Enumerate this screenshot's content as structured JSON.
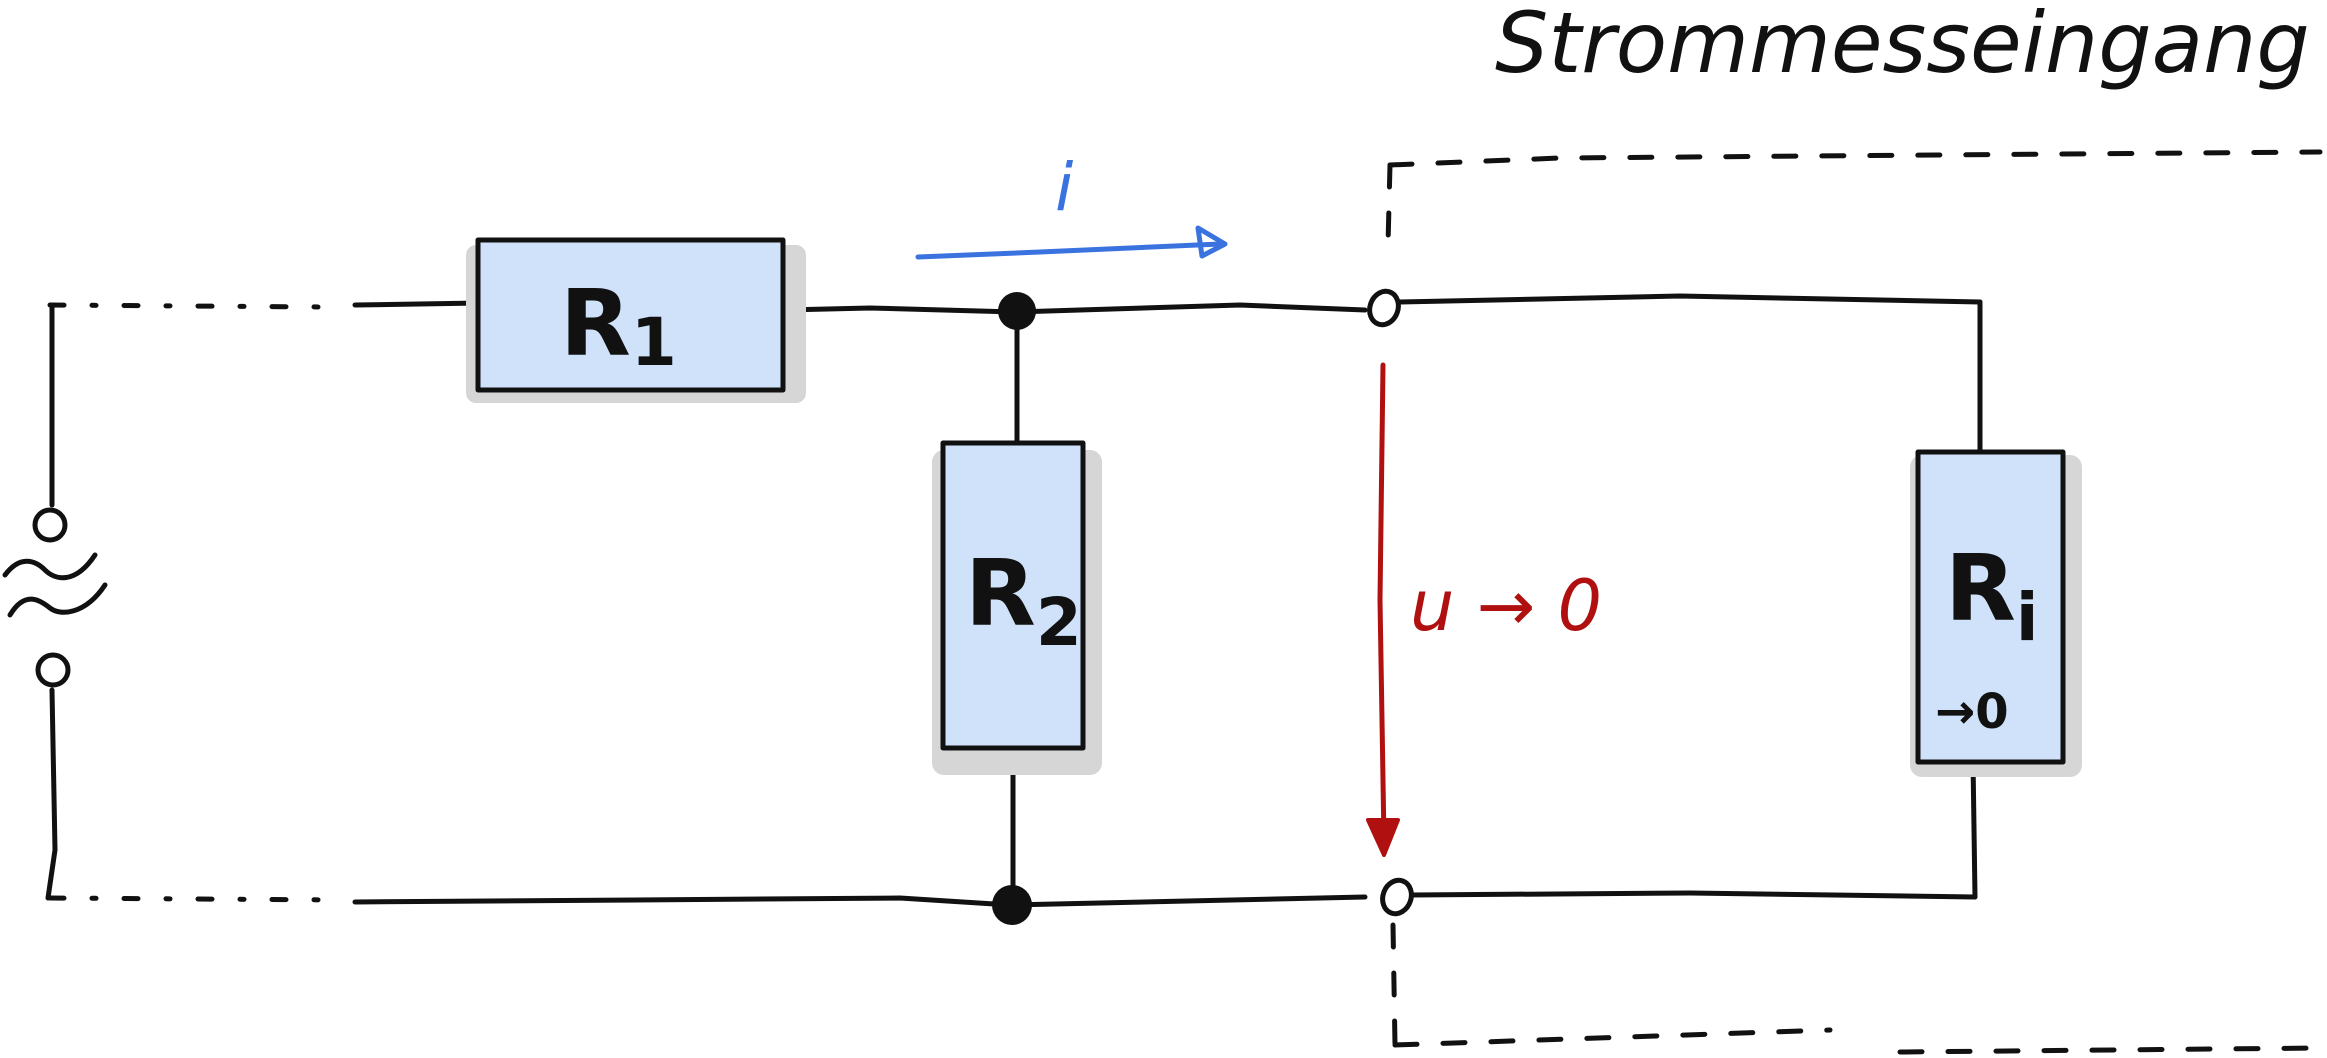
{
  "title": "Strommesseingang",
  "resistors": {
    "r1": {
      "label": "R",
      "sub": "1"
    },
    "r2": {
      "label": "R",
      "sub": "2"
    },
    "ri": {
      "label": "R",
      "sub": "i",
      "note": "→0"
    }
  },
  "current_label": "i",
  "voltage_label": "u → 0",
  "source_symbol": "≈",
  "colors": {
    "current": "#3a72e0",
    "voltage": "#b01010",
    "resistor_fill": "#cfe2fa",
    "ink": "#111111"
  }
}
